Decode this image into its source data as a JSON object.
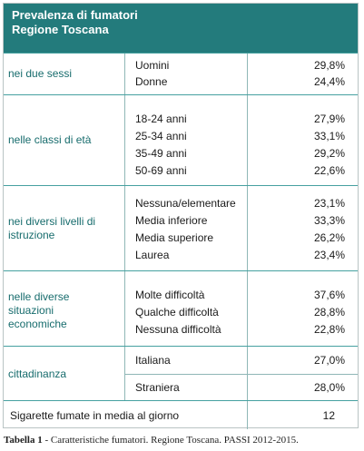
{
  "table": {
    "title_line1": "Prevalenza di fumatori",
    "title_line2": "Regione Toscana",
    "groups": [
      {
        "category": "nei due sessi",
        "rows": [
          {
            "label": "Uomini",
            "value": "29,8%"
          },
          {
            "label": "Donne",
            "value": "24,4%"
          }
        ]
      },
      {
        "category": "nelle classi di età",
        "rows": [
          {
            "label": "18-24 anni",
            "value": "27,9%"
          },
          {
            "label": "25-34 anni",
            "value": "33,1%"
          },
          {
            "label": "35-49 anni",
            "value": "29,2%"
          },
          {
            "label": "50-69 anni",
            "value": "22,6%"
          }
        ]
      },
      {
        "category_line1": "nei diversi livelli di",
        "category_line2": "istruzione",
        "rows": [
          {
            "label": "Nessuna/elementare",
            "value": "23,1%"
          },
          {
            "label": "Media inferiore",
            "value": "33,3%"
          },
          {
            "label": "Media superiore",
            "value": "26,2%"
          },
          {
            "label": "Laurea",
            "value": "23,4%"
          }
        ]
      },
      {
        "category_line1": "nelle diverse",
        "category_line2": "situazioni",
        "category_line3": "economiche",
        "rows": [
          {
            "label": "Molte difficoltà",
            "value": "37,6%"
          },
          {
            "label": "Qualche difficoltà",
            "value": "28,8%"
          },
          {
            "label": "Nessuna difficoltà",
            "value": "22,8%"
          }
        ]
      },
      {
        "category": "cittadinanza",
        "rows": [
          {
            "label": "Italiana",
            "value": "27,0%"
          },
          {
            "label": "Straniera",
            "value": "28,0%"
          }
        ]
      }
    ],
    "cigarettes_label": "Sigarette fumate in media al giorno",
    "cigarettes_value": "12"
  },
  "caption": {
    "bold": "Tabella 1",
    "text": " - Caratteristiche fumatori. Regione Toscana. PASSI 2012-2015."
  }
}
